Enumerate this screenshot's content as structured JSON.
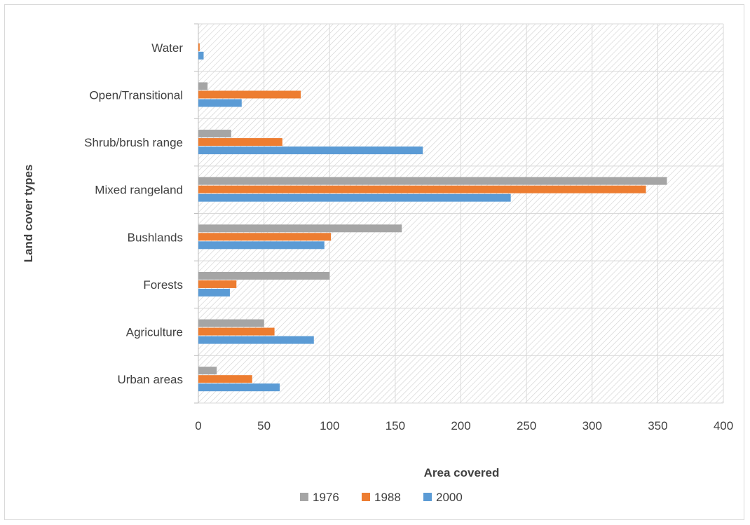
{
  "chart_data": {
    "type": "bar",
    "orientation": "horizontal",
    "categories": [
      "Urban areas",
      "Agriculture",
      "Forests",
      "Bushlands",
      "Mixed rangeland",
      "Shrub/brush range",
      "Open/Transitional",
      "Water"
    ],
    "series": [
      {
        "name": "1976",
        "color": "#a5a5a5",
        "values": [
          14,
          50,
          100,
          155,
          357,
          25,
          7,
          0
        ]
      },
      {
        "name": "1988",
        "color": "#ed7d31",
        "values": [
          41,
          58,
          29,
          101,
          341,
          64,
          78,
          1
        ]
      },
      {
        "name": "2000",
        "color": "#5b9bd5",
        "values": [
          62,
          88,
          24,
          96,
          238,
          171,
          33,
          4
        ]
      }
    ],
    "xlabel": "Area covered",
    "ylabel": "Land cover types",
    "xlim": [
      0,
      400
    ],
    "xticks": [
      0,
      50,
      100,
      150,
      200,
      250,
      300,
      350,
      400
    ],
    "grid": true,
    "legend": "bottom"
  }
}
